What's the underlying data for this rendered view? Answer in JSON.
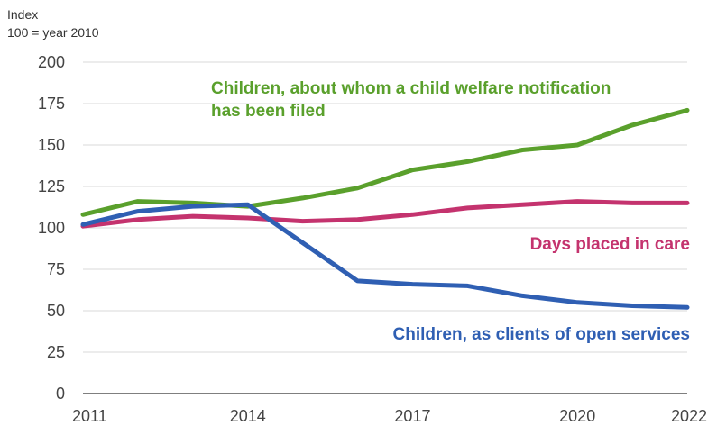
{
  "units": {
    "line1": "Index",
    "line2": "100 = year 2010"
  },
  "chart_data": {
    "type": "line",
    "x": [
      2011,
      2012,
      2013,
      2014,
      2015,
      2016,
      2017,
      2018,
      2019,
      2020,
      2021,
      2022
    ],
    "xticks": [
      "2011",
      "2014",
      "2017",
      "2020",
      "2022"
    ],
    "yticks": [
      "0",
      "25",
      "50",
      "75",
      "100",
      "125",
      "150",
      "175",
      "200"
    ],
    "ylim": [
      0,
      200
    ],
    "grid": true,
    "series": [
      {
        "name": "Children, about whom a child welfare notification has been filed",
        "label_lines": [
          "Children, about whom a child welfare notification",
          "has been filed"
        ],
        "color": "#5aa02c",
        "values": [
          108,
          116,
          115,
          113,
          118,
          124,
          135,
          140,
          147,
          150,
          162,
          171
        ]
      },
      {
        "name": "Days placed in care",
        "label_lines": [
          "Days placed in care"
        ],
        "color": "#c4336e",
        "values": [
          101,
          105,
          107,
          106,
          104,
          105,
          108,
          112,
          114,
          116,
          115,
          115
        ]
      },
      {
        "name": "Children, as clients of open services",
        "label_lines": [
          "Children, as clients of open services"
        ],
        "color": "#2f5fb3",
        "values": [
          102,
          110,
          113,
          114,
          91,
          68,
          66,
          65,
          59,
          55,
          53,
          52
        ]
      }
    ]
  }
}
